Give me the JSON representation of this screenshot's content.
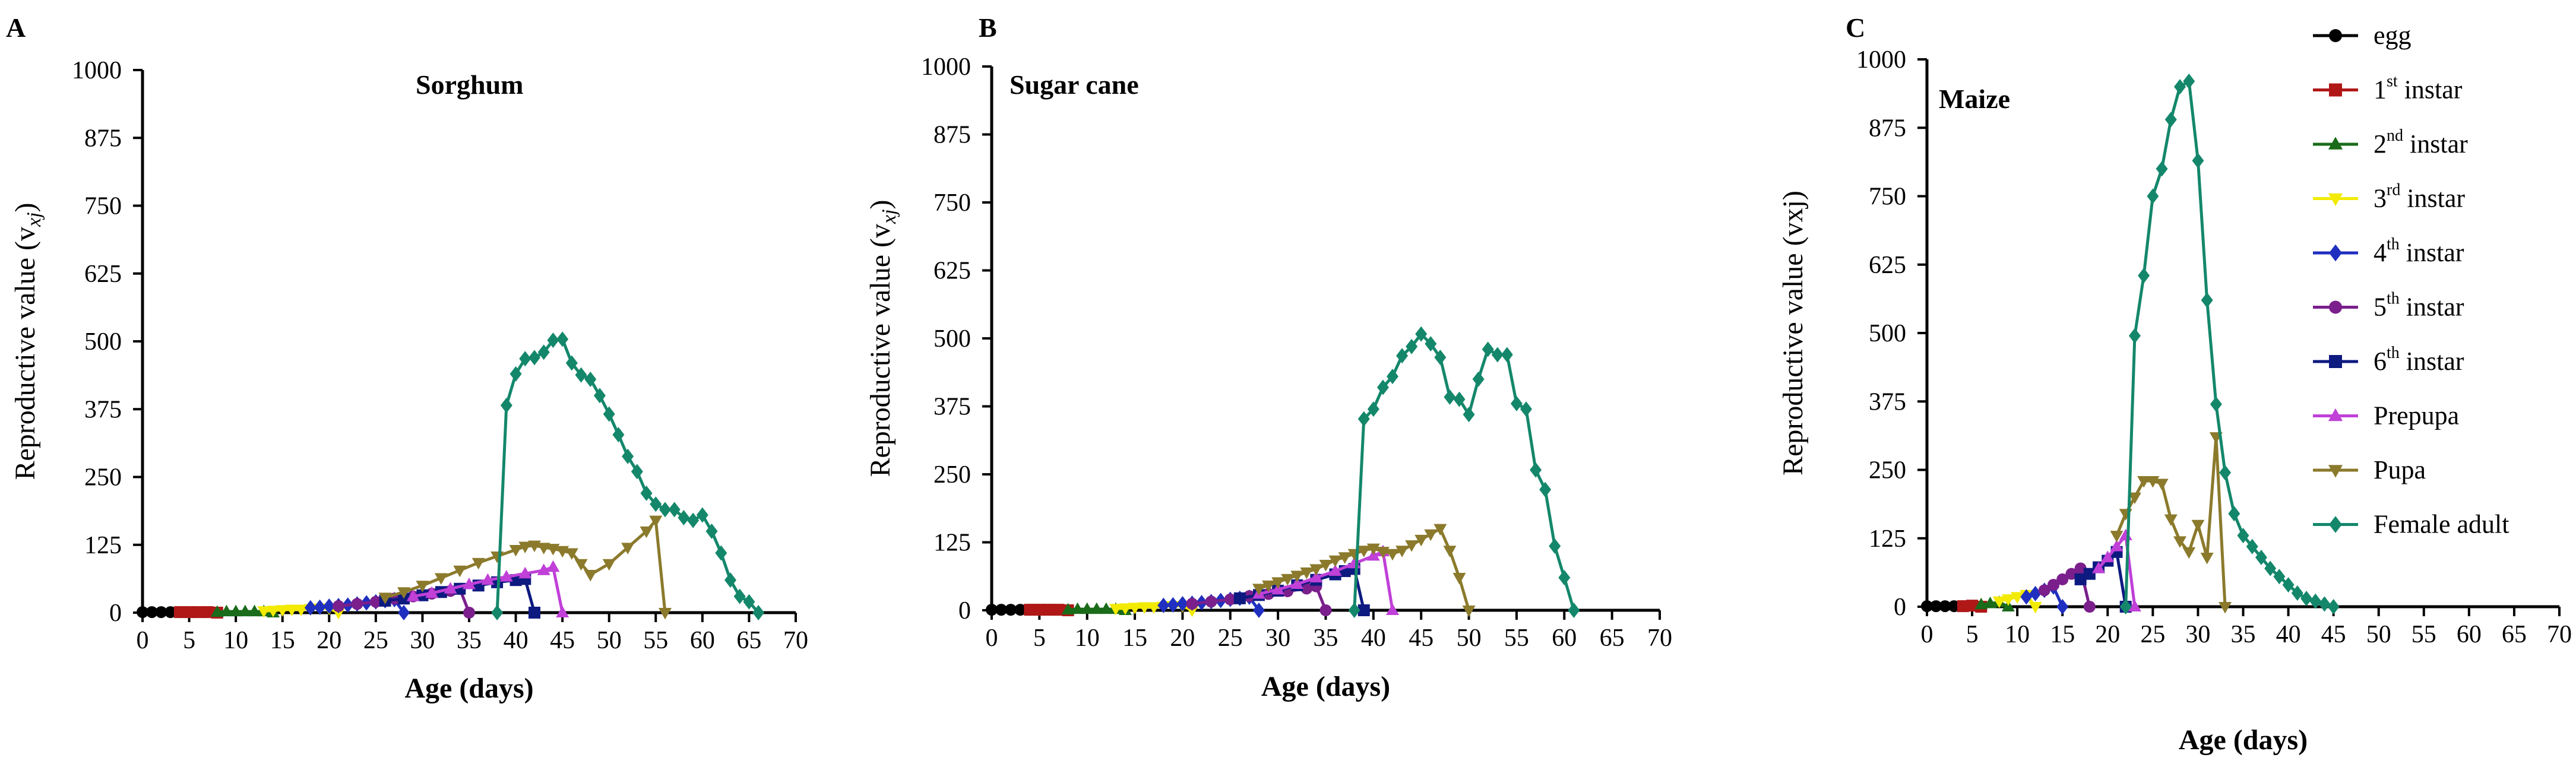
{
  "figure": {
    "legend": [
      {
        "key": "egg",
        "label": "egg",
        "sup": "",
        "rest": "",
        "color": "#000000",
        "marker": "circle"
      },
      {
        "key": "i1",
        "label": "1",
        "sup": "st",
        "rest": "instar",
        "color": "#b01818",
        "marker": "square"
      },
      {
        "key": "i2",
        "label": "2",
        "sup": "nd",
        "rest": "instar",
        "color": "#1a6b1a",
        "marker": "triangle"
      },
      {
        "key": "i3",
        "label": "3",
        "sup": "rd",
        "rest": "instar",
        "color": "#f2ea00",
        "marker": "triangle-down"
      },
      {
        "key": "i4",
        "label": "4",
        "sup": "th",
        "rest": "instar",
        "color": "#1f2fbf",
        "marker": "diamond"
      },
      {
        "key": "i5",
        "label": "5",
        "sup": "th",
        "rest": "instar",
        "color": "#7a1f8c",
        "marker": "circle"
      },
      {
        "key": "i6",
        "label": "6",
        "sup": "th",
        "rest": "instar",
        "color": "#0d1a80",
        "marker": "square"
      },
      {
        "key": "prepupa",
        "label": "Prepupa",
        "sup": "",
        "rest": "",
        "color": "#c040d8",
        "marker": "triangle"
      },
      {
        "key": "pupa",
        "label": "Pupa",
        "sup": "",
        "rest": "",
        "color": "#8b7a2c",
        "marker": "triangle-down"
      },
      {
        "key": "adult",
        "label": "Female adult",
        "sup": "",
        "rest": "",
        "color": "#14876b",
        "marker": "diamond"
      }
    ]
  },
  "chart_data": [
    {
      "type": "line",
      "panel": "A",
      "title": "Sorghum",
      "xlabel": "Age (days)",
      "ylabel": "Reproductive value (v",
      "ylabel_sub": "xj",
      "ylabel_close": ")",
      "xlim": [
        0,
        70
      ],
      "ylim": [
        0,
        1000
      ],
      "xticks": [
        0,
        5,
        10,
        15,
        20,
        25,
        30,
        35,
        40,
        45,
        50,
        55,
        60,
        65,
        70
      ],
      "yticks": [
        0,
        125,
        250,
        375,
        500,
        625,
        750,
        875,
        1000
      ],
      "series": [
        {
          "key": "egg",
          "x": [
            0,
            1,
            2,
            3,
            4
          ],
          "y": [
            1,
            1,
            1,
            1,
            1
          ]
        },
        {
          "key": "i1",
          "x": [
            4,
            5,
            6,
            7,
            8
          ],
          "y": [
            1,
            1,
            1,
            1,
            0
          ]
        },
        {
          "key": "i2",
          "x": [
            8,
            9,
            10,
            11,
            12,
            13,
            14
          ],
          "y": [
            1,
            2,
            2,
            2,
            2,
            2,
            0
          ]
        },
        {
          "key": "i3",
          "x": [
            13,
            14,
            15,
            16,
            17,
            18,
            19,
            20,
            21
          ],
          "y": [
            3,
            4,
            5,
            6,
            6,
            7,
            8,
            8,
            0
          ]
        },
        {
          "key": "i4",
          "x": [
            18,
            19,
            20,
            21,
            22,
            23,
            24,
            25,
            26,
            27,
            28
          ],
          "y": [
            9,
            10,
            12,
            13,
            14,
            16,
            18,
            20,
            22,
            24,
            0
          ]
        },
        {
          "key": "i5",
          "x": [
            21,
            23,
            25,
            27,
            29,
            31,
            33,
            34,
            35
          ],
          "y": [
            12,
            16,
            20,
            26,
            30,
            35,
            40,
            44,
            0
          ]
        },
        {
          "key": "i6",
          "x": [
            26,
            28,
            30,
            32,
            34,
            36,
            38,
            40,
            41,
            42
          ],
          "y": [
            22,
            26,
            32,
            38,
            44,
            50,
            56,
            60,
            62,
            0
          ]
        },
        {
          "key": "prepupa",
          "x": [
            29,
            31,
            33,
            35,
            37,
            39,
            41,
            43,
            44,
            45
          ],
          "y": [
            30,
            36,
            44,
            52,
            60,
            66,
            72,
            78,
            84,
            0
          ]
        },
        {
          "key": "pupa",
          "x": [
            26,
            28,
            30,
            32,
            34,
            36,
            38,
            40,
            41,
            42,
            43,
            44,
            45,
            46,
            47,
            48,
            50,
            52,
            54,
            55,
            56
          ],
          "y": [
            28,
            38,
            50,
            64,
            78,
            92,
            104,
            116,
            122,
            124,
            120,
            118,
            114,
            110,
            90,
            70,
            90,
            120,
            150,
            170,
            0
          ]
        },
        {
          "key": "adult",
          "x": [
            38,
            39,
            40,
            41,
            42,
            43,
            44,
            45,
            46,
            47,
            48,
            49,
            50,
            51,
            52,
            53,
            54,
            55,
            56,
            57,
            58,
            59,
            60,
            61,
            62,
            63,
            64,
            65,
            66
          ],
          "y": [
            0,
            382,
            440,
            468,
            470,
            480,
            502,
            504,
            460,
            438,
            430,
            400,
            366,
            328,
            288,
            260,
            220,
            200,
            190,
            190,
            175,
            170,
            180,
            150,
            110,
            60,
            30,
            20,
            0
          ]
        }
      ]
    },
    {
      "type": "line",
      "panel": "B",
      "title": "Sugar cane",
      "xlabel": "Age (days)",
      "ylabel": "Reproductive value (v",
      "ylabel_sub": "xj",
      "ylabel_close": ")",
      "xlim": [
        0,
        70
      ],
      "ylim": [
        0,
        1000
      ],
      "xticks": [
        0,
        5,
        10,
        15,
        20,
        25,
        30,
        35,
        40,
        45,
        50,
        55,
        60,
        65,
        70
      ],
      "yticks": [
        0,
        125,
        250,
        375,
        500,
        625,
        750,
        875,
        1000
      ],
      "series": [
        {
          "key": "egg",
          "x": [
            0,
            1,
            2,
            3,
            4
          ],
          "y": [
            1,
            1,
            1,
            1,
            1
          ]
        },
        {
          "key": "i1",
          "x": [
            4,
            5,
            6,
            7,
            8
          ],
          "y": [
            1,
            1,
            1,
            1,
            0
          ]
        },
        {
          "key": "i2",
          "x": [
            8,
            9,
            10,
            11,
            12,
            13,
            14
          ],
          "y": [
            1,
            2,
            2,
            2,
            2,
            2,
            0
          ]
        },
        {
          "key": "i3",
          "x": [
            13,
            14,
            15,
            16,
            17,
            18,
            19,
            20,
            21
          ],
          "y": [
            3,
            4,
            5,
            6,
            6,
            7,
            8,
            8,
            0
          ]
        },
        {
          "key": "i4",
          "x": [
            18,
            19,
            20,
            21,
            22,
            23,
            24,
            25,
            26,
            27,
            28
          ],
          "y": [
            9,
            10,
            12,
            13,
            14,
            16,
            18,
            20,
            22,
            24,
            0
          ]
        },
        {
          "key": "i5",
          "x": [
            21,
            23,
            25,
            27,
            29,
            31,
            33,
            34,
            35
          ],
          "y": [
            12,
            16,
            20,
            26,
            30,
            35,
            40,
            44,
            0
          ]
        },
        {
          "key": "i6",
          "x": [
            26,
            28,
            30,
            32,
            34,
            36,
            37,
            38,
            39
          ],
          "y": [
            22,
            28,
            36,
            46,
            56,
            66,
            72,
            76,
            0
          ]
        },
        {
          "key": "prepupa",
          "x": [
            28,
            30,
            32,
            34,
            36,
            38,
            40,
            41,
            42
          ],
          "y": [
            30,
            38,
            48,
            60,
            72,
            86,
            100,
            108,
            0
          ]
        },
        {
          "key": "pupa",
          "x": [
            28,
            29,
            30,
            31,
            32,
            33,
            34,
            35,
            36,
            37,
            38,
            39,
            40,
            41,
            42,
            43,
            44,
            45,
            46,
            47,
            48,
            49,
            50
          ],
          "y": [
            40,
            46,
            52,
            58,
            64,
            70,
            76,
            84,
            92,
            98,
            104,
            110,
            114,
            108,
            104,
            110,
            120,
            130,
            140,
            150,
            110,
            60,
            0
          ]
        },
        {
          "key": "adult",
          "x": [
            38,
            39,
            40,
            41,
            42,
            43,
            44,
            45,
            46,
            47,
            48,
            49,
            50,
            51,
            52,
            53,
            54,
            55,
            56,
            57,
            58,
            59,
            60,
            61
          ],
          "y": [
            0,
            352,
            370,
            410,
            430,
            468,
            485,
            508,
            490,
            465,
            392,
            388,
            360,
            425,
            480,
            470,
            470,
            380,
            370,
            258,
            222,
            118,
            60,
            0
          ]
        }
      ]
    },
    {
      "type": "line",
      "panel": "C",
      "title": "Maize",
      "xlabel": "Age (days)",
      "ylabel": "Reproductive value (vxj)",
      "ylabel_sub": "",
      "ylabel_close": "",
      "xlim": [
        0,
        70
      ],
      "ylim": [
        0,
        1000
      ],
      "xticks": [
        0,
        5,
        10,
        15,
        20,
        25,
        30,
        35,
        40,
        45,
        50,
        55,
        60,
        65,
        70
      ],
      "yticks": [
        0,
        125,
        250,
        375,
        500,
        625,
        750,
        875,
        1000
      ],
      "series": [
        {
          "key": "egg",
          "x": [
            0,
            1,
            2,
            3,
            4
          ],
          "y": [
            1,
            1,
            1,
            1,
            1
          ]
        },
        {
          "key": "i1",
          "x": [
            4,
            5,
            6
          ],
          "y": [
            1,
            2,
            0
          ]
        },
        {
          "key": "i2",
          "x": [
            6,
            7,
            8,
            9
          ],
          "y": [
            4,
            6,
            8,
            0
          ]
        },
        {
          "key": "i3",
          "x": [
            8,
            9,
            10,
            11,
            12
          ],
          "y": [
            10,
            14,
            18,
            22,
            0
          ]
        },
        {
          "key": "i4",
          "x": [
            11,
            12,
            13,
            14,
            15
          ],
          "y": [
            18,
            24,
            30,
            36,
            0
          ]
        },
        {
          "key": "i5",
          "x": [
            13,
            14,
            15,
            16,
            17,
            18
          ],
          "y": [
            30,
            40,
            50,
            60,
            70,
            0
          ]
        },
        {
          "key": "i6",
          "x": [
            17,
            18,
            19,
            20,
            21,
            22
          ],
          "y": [
            50,
            60,
            72,
            84,
            100,
            0
          ]
        },
        {
          "key": "prepupa",
          "x": [
            19,
            20,
            21,
            22,
            23
          ],
          "y": [
            70,
            90,
            110,
            130,
            0
          ]
        },
        {
          "key": "pupa",
          "x": [
            21,
            22,
            23,
            24,
            25,
            26,
            27,
            28,
            29,
            30,
            31,
            32,
            33
          ],
          "y": [
            130,
            170,
            200,
            230,
            230,
            225,
            160,
            120,
            100,
            150,
            90,
            310,
            0
          ]
        },
        {
          "key": "adult",
          "x": [
            22,
            23,
            24,
            25,
            26,
            27,
            28,
            29,
            30,
            31,
            32,
            33,
            34,
            35,
            36,
            37,
            38,
            39,
            40,
            41,
            42,
            43,
            44,
            45
          ],
          "y": [
            0,
            495,
            605,
            750,
            800,
            890,
            950,
            960,
            815,
            560,
            370,
            245,
            170,
            130,
            110,
            90,
            70,
            55,
            40,
            25,
            15,
            10,
            5,
            0
          ]
        }
      ]
    }
  ]
}
